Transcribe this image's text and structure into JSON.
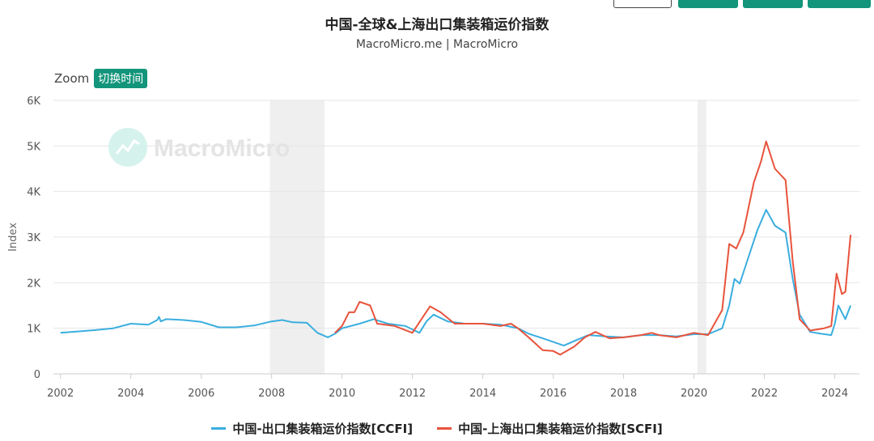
{
  "title": "中国-全球&上海出口集装箱运价指数",
  "subtitle": "MacroMicro.me | MacroMicro",
  "zoom": {
    "label": "Zoom",
    "button": "切换时间"
  },
  "watermark": "MacroMicro",
  "colors": {
    "ccfi": "#3aaedf",
    "scfi": "#e8533c",
    "accent": "#12957a",
    "recession": "#efefef"
  },
  "chart_data": {
    "type": "line",
    "title": "中国-全球&上海出口集装箱运价指数",
    "ylabel": "Index",
    "xlabel": "",
    "xlim": [
      2001.8,
      2024.7
    ],
    "ylim": [
      0,
      6000
    ],
    "yticks": [
      0,
      1000,
      2000,
      3000,
      4000,
      5000,
      6000
    ],
    "ytick_labels": [
      "0",
      "1K",
      "2K",
      "3K",
      "4K",
      "5K",
      "6K"
    ],
    "xticks": [
      2002,
      2004,
      2006,
      2008,
      2010,
      2012,
      2014,
      2016,
      2018,
      2020,
      2022,
      2024
    ],
    "xtick_labels": [
      "2002",
      "2004",
      "2006",
      "2008",
      "2010",
      "2012",
      "2014",
      "2016",
      "2018",
      "2020",
      "2022",
      "2024"
    ],
    "grid": true,
    "legend_position": "bottom",
    "shaded_ranges": [
      [
        2007.95,
        2009.5
      ],
      [
        2020.1,
        2020.35
      ]
    ],
    "series": [
      {
        "name": "中国-出口集装箱运价指数[CCFI]",
        "color": "#3aaedf",
        "points": [
          [
            2002.0,
            900
          ],
          [
            2002.5,
            930
          ],
          [
            2003.0,
            960
          ],
          [
            2003.5,
            1000
          ],
          [
            2004.0,
            1100
          ],
          [
            2004.5,
            1080
          ],
          [
            2004.75,
            1180
          ],
          [
            2004.8,
            1250
          ],
          [
            2004.85,
            1150
          ],
          [
            2005.0,
            1200
          ],
          [
            2005.5,
            1180
          ],
          [
            2006.0,
            1140
          ],
          [
            2006.5,
            1020
          ],
          [
            2007.0,
            1020
          ],
          [
            2007.5,
            1060
          ],
          [
            2008.0,
            1150
          ],
          [
            2008.3,
            1180
          ],
          [
            2008.6,
            1130
          ],
          [
            2009.0,
            1120
          ],
          [
            2009.3,
            900
          ],
          [
            2009.6,
            800
          ],
          [
            2009.8,
            880
          ],
          [
            2010.0,
            1000
          ],
          [
            2010.5,
            1100
          ],
          [
            2010.9,
            1200
          ],
          [
            2011.3,
            1100
          ],
          [
            2011.8,
            1050
          ],
          [
            2012.2,
            900
          ],
          [
            2012.4,
            1150
          ],
          [
            2012.6,
            1300
          ],
          [
            2013.0,
            1150
          ],
          [
            2013.5,
            1100
          ],
          [
            2014.0,
            1100
          ],
          [
            2014.5,
            1080
          ],
          [
            2015.0,
            1000
          ],
          [
            2015.3,
            880
          ],
          [
            2015.7,
            780
          ],
          [
            2016.0,
            700
          ],
          [
            2016.3,
            620
          ],
          [
            2016.6,
            720
          ],
          [
            2017.0,
            850
          ],
          [
            2017.5,
            820
          ],
          [
            2018.0,
            800
          ],
          [
            2018.5,
            850
          ],
          [
            2019.0,
            850
          ],
          [
            2019.5,
            820
          ],
          [
            2020.0,
            870
          ],
          [
            2020.4,
            870
          ],
          [
            2020.8,
            1000
          ],
          [
            2021.0,
            1500
          ],
          [
            2021.15,
            2080
          ],
          [
            2021.3,
            1980
          ],
          [
            2021.5,
            2450
          ],
          [
            2021.8,
            3150
          ],
          [
            2022.05,
            3600
          ],
          [
            2022.3,
            3250
          ],
          [
            2022.6,
            3100
          ],
          [
            2022.8,
            2100
          ],
          [
            2023.0,
            1300
          ],
          [
            2023.3,
            920
          ],
          [
            2023.6,
            880
          ],
          [
            2023.9,
            850
          ],
          [
            2024.0,
            1100
          ],
          [
            2024.1,
            1500
          ],
          [
            2024.3,
            1200
          ],
          [
            2024.45,
            1500
          ]
        ]
      },
      {
        "name": "中国-上海出口集装箱运价指数[SCFI]",
        "color": "#e8533c",
        "points": [
          [
            2009.8,
            900
          ],
          [
            2010.0,
            1050
          ],
          [
            2010.2,
            1350
          ],
          [
            2010.35,
            1350
          ],
          [
            2010.5,
            1580
          ],
          [
            2010.8,
            1500
          ],
          [
            2011.0,
            1100
          ],
          [
            2011.5,
            1050
          ],
          [
            2012.0,
            900
          ],
          [
            2012.3,
            1250
          ],
          [
            2012.5,
            1480
          ],
          [
            2012.8,
            1350
          ],
          [
            2013.2,
            1100
          ],
          [
            2013.6,
            1100
          ],
          [
            2014.0,
            1100
          ],
          [
            2014.5,
            1050
          ],
          [
            2014.8,
            1100
          ],
          [
            2015.0,
            1000
          ],
          [
            2015.3,
            800
          ],
          [
            2015.7,
            520
          ],
          [
            2016.0,
            500
          ],
          [
            2016.2,
            420
          ],
          [
            2016.6,
            600
          ],
          [
            2016.9,
            800
          ],
          [
            2017.2,
            920
          ],
          [
            2017.6,
            780
          ],
          [
            2018.0,
            800
          ],
          [
            2018.5,
            850
          ],
          [
            2018.8,
            900
          ],
          [
            2019.0,
            850
          ],
          [
            2019.5,
            800
          ],
          [
            2020.0,
            900
          ],
          [
            2020.4,
            850
          ],
          [
            2020.8,
            1400
          ],
          [
            2021.0,
            2850
          ],
          [
            2021.2,
            2750
          ],
          [
            2021.4,
            3100
          ],
          [
            2021.7,
            4200
          ],
          [
            2021.9,
            4650
          ],
          [
            2022.05,
            5100
          ],
          [
            2022.3,
            4500
          ],
          [
            2022.6,
            4250
          ],
          [
            2022.8,
            2500
          ],
          [
            2023.0,
            1200
          ],
          [
            2023.3,
            950
          ],
          [
            2023.7,
            1000
          ],
          [
            2023.9,
            1050
          ],
          [
            2024.05,
            2200
          ],
          [
            2024.2,
            1750
          ],
          [
            2024.3,
            1800
          ],
          [
            2024.45,
            3050
          ]
        ]
      }
    ]
  }
}
